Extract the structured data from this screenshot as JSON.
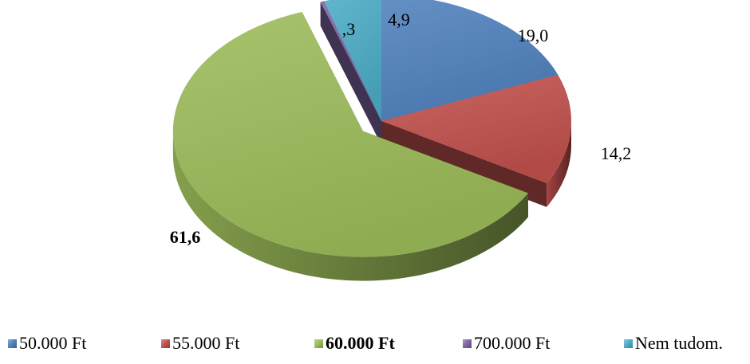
{
  "chart_data": {
    "type": "pie",
    "style": "3d-exploded",
    "legend_position": "bottom",
    "categories": [
      "50.000 Ft",
      "55.000 Ft",
      "60.000 Ft",
      "700.000 Ft",
      "Nem tudom."
    ],
    "values": [
      19.0,
      14.2,
      61.6,
      0.3,
      4.9
    ],
    "data_labels": [
      "19,0",
      "14,2",
      "61,6",
      ",3",
      "4,9"
    ],
    "highlighted_category": "60.000 Ft",
    "colors": [
      "#4F81BD",
      "#C0504D",
      "#9BBB59",
      "#8064A2",
      "#4BACC6"
    ]
  }
}
